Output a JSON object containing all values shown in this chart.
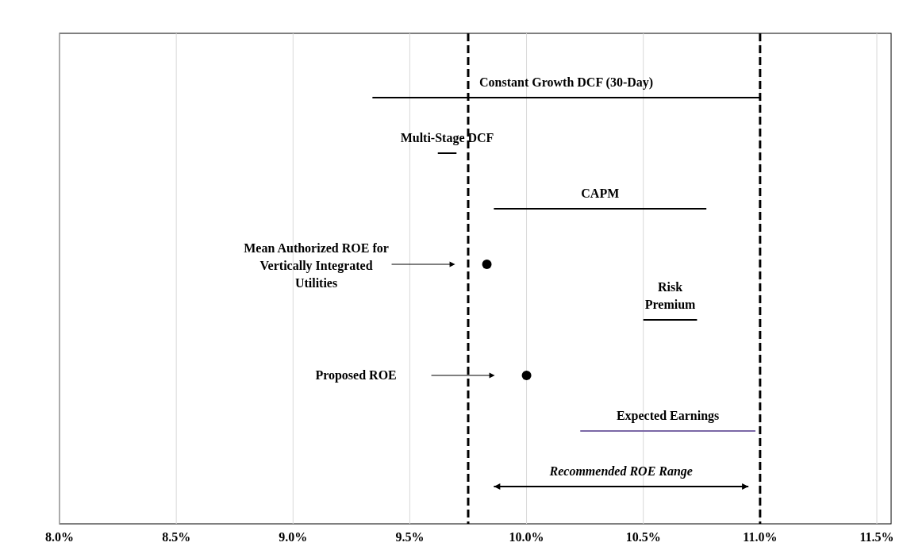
{
  "chart_data": {
    "type": "bar",
    "orientation": "horizontal",
    "categories": [
      "Constant Growth DCF (30-Day)",
      "Multi-Stage DCF",
      "CAPM",
      "Mean Authorized ROE for\nVertically Integrated\nUtilities",
      "Risk\nPremium",
      "Proposed ROE",
      "Expected Earnings",
      "Recommended ROE Range"
    ],
    "series": [
      {
        "type": "bar",
        "color": "#000000",
        "colors": [
          "#000000",
          "#000000",
          "#000000",
          null,
          "#000000",
          null,
          "#7b68a6",
          "#000000"
        ],
        "base": [
          9.34,
          9.62,
          9.86,
          null,
          10.5,
          null,
          10.23,
          9.86
        ],
        "values": [
          1.66,
          0.08,
          0.91,
          null,
          0.23,
          null,
          0.75,
          1.09
        ]
      },
      {
        "type": "scatter",
        "color": "#000000",
        "values": [
          null,
          null,
          null,
          9.83,
          null,
          10.0,
          null,
          null
        ]
      }
    ],
    "xlim": [
      8,
      11.5
    ],
    "xticks": [
      {
        "value": 8,
        "label": "8.0%"
      },
      {
        "value": 8.5,
        "label": "8.5%"
      },
      {
        "value": 9,
        "label": "9.0%"
      },
      {
        "value": 9.5,
        "label": "9.5%"
      },
      {
        "value": 10,
        "label": "10.0%"
      },
      {
        "value": 10.5,
        "label": "10.5%"
      },
      {
        "value": 11,
        "label": "11.0%"
      },
      {
        "value": 11.5,
        "label": "11.5%"
      }
    ],
    "grid": "x",
    "marker": "circle",
    "ref_lines": [
      {
        "axis": "x",
        "value": 9.75,
        "color": "#000000",
        "line_style": "dashed"
      },
      {
        "axis": "x",
        "value": 11.0,
        "color": "#000000",
        "line_style": "dashed"
      }
    ]
  }
}
